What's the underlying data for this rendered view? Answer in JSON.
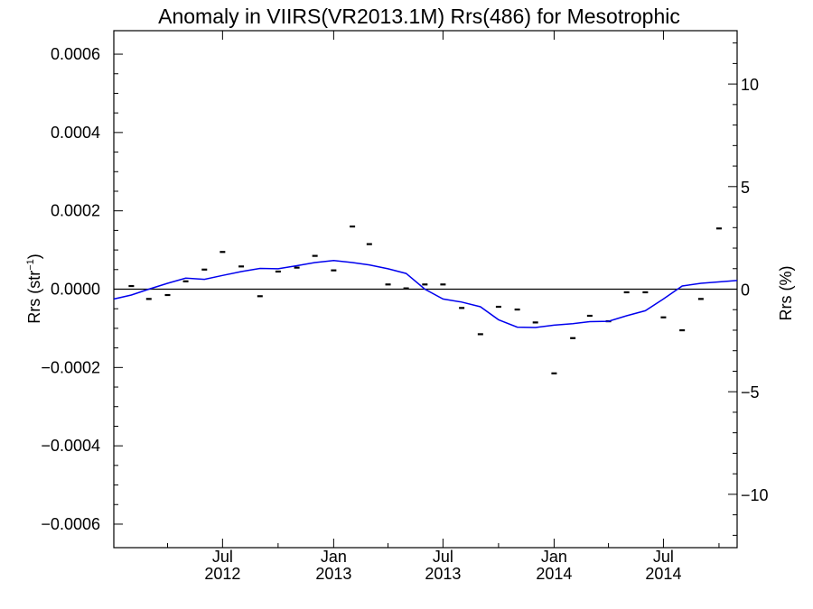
{
  "chart_data": {
    "type": "scatter",
    "title": "Anomaly in VIIRS(VR2013.1M) Rrs(486) for Mesotrophic",
    "ylabel_left": "Rrs (str",
    "ylabel_left_sup": "−1",
    "ylabel_left_end": ")",
    "ylabel_right": "Rrs (%)",
    "ylim": [
      -0.00066,
      0.00066
    ],
    "ylim_right": [
      -12.6,
      12.6
    ],
    "yticks_left": [
      {
        "v": 0.0006,
        "label": "0.0006"
      },
      {
        "v": 0.0004,
        "label": "0.0004"
      },
      {
        "v": 0.0002,
        "label": "0.0002"
      },
      {
        "v": 0.0,
        "label": "0.0000"
      },
      {
        "v": -0.0002,
        "label": "−0.0002"
      },
      {
        "v": -0.0004,
        "label": "−0.0004"
      },
      {
        "v": -0.0006,
        "label": "−0.0006"
      }
    ],
    "yticks_right": [
      {
        "v": 10,
        "label": "10"
      },
      {
        "v": 5,
        "label": "5"
      },
      {
        "v": 0,
        "label": "0"
      },
      {
        "v": -5,
        "label": "−5"
      },
      {
        "v": -10,
        "label": "−10"
      }
    ],
    "xlim": [
      "2012-01-03",
      "2014-10-31"
    ],
    "xticks": [
      {
        "date": "2012-07-01",
        "line1": "Jul",
        "line2": "2012"
      },
      {
        "date": "2013-01-01",
        "line1": "Jan",
        "line2": "2013"
      },
      {
        "date": "2013-07-01",
        "line1": "Jul",
        "line2": "2013"
      },
      {
        "date": "2014-01-01",
        "line1": "Jan",
        "line2": "2014"
      },
      {
        "date": "2014-07-01",
        "line1": "Jul",
        "line2": "2014"
      }
    ],
    "series": [
      {
        "kind": "monthly-points",
        "color": "#000000",
        "x": [
          "2012-01-01",
          "2012-02-01",
          "2012-03-01",
          "2012-04-01",
          "2012-05-01",
          "2012-06-01",
          "2012-07-01",
          "2012-08-01",
          "2012-09-01",
          "2012-10-01",
          "2012-11-01",
          "2012-12-01",
          "2013-01-01",
          "2013-02-01",
          "2013-03-01",
          "2013-04-01",
          "2013-05-01",
          "2013-06-01",
          "2013-07-01",
          "2013-08-01",
          "2013-09-01",
          "2013-10-01",
          "2013-11-01",
          "2013-12-01",
          "2014-01-01",
          "2014-02-01",
          "2014-03-01",
          "2014-04-01",
          "2014-05-01",
          "2014-06-01",
          "2014-07-01",
          "2014-08-01",
          "2014-09-01",
          "2014-10-01"
        ],
        "y": [
          -5e-05,
          8e-06,
          -2.5e-05,
          -1.5e-05,
          2e-05,
          5e-05,
          9.5e-05,
          5.8e-05,
          -1.8e-05,
          4.5e-05,
          5.5e-05,
          8.5e-05,
          4.8e-05,
          0.00016,
          0.000115,
          1.2e-05,
          2e-06,
          1.2e-05,
          1.2e-05,
          -4.8e-05,
          -0.000115,
          -4.5e-05,
          -5.2e-05,
          -8.5e-05,
          -0.000215,
          -0.000125,
          -6.8e-05,
          -8.2e-05,
          -8e-06,
          -8e-06,
          -7.2e-05,
          -0.000105,
          -2.5e-05,
          0.000155
        ]
      },
      {
        "kind": "smoothed-line",
        "color": "#0000ee",
        "x": [
          "2012-01-03",
          "2012-02-01",
          "2012-03-01",
          "2012-04-01",
          "2012-05-01",
          "2012-06-01",
          "2012-07-01",
          "2012-08-01",
          "2012-09-01",
          "2012-10-01",
          "2012-11-01",
          "2012-12-01",
          "2013-01-01",
          "2013-02-01",
          "2013-03-01",
          "2013-04-01",
          "2013-05-01",
          "2013-06-01",
          "2013-07-01",
          "2013-08-01",
          "2013-09-01",
          "2013-10-01",
          "2013-11-01",
          "2013-12-01",
          "2014-01-01",
          "2014-02-01",
          "2014-03-01",
          "2014-04-01",
          "2014-05-01",
          "2014-06-01",
          "2014-07-01",
          "2014-08-01",
          "2014-09-01",
          "2014-10-31"
        ],
        "y": [
          -2.5e-05,
          -1.5e-05,
          0.0,
          1.5e-05,
          2.8e-05,
          2.5e-05,
          3.5e-05,
          4.5e-05,
          5.3e-05,
          5.2e-05,
          6e-05,
          6.8e-05,
          7.3e-05,
          6.8e-05,
          6.2e-05,
          5.2e-05,
          4e-05,
          0.0,
          -2.5e-05,
          -3.3e-05,
          -4.5e-05,
          -7.8e-05,
          -9.7e-05,
          -9.8e-05,
          -9.2e-05,
          -8.8e-05,
          -8.3e-05,
          -8.2e-05,
          -6.8e-05,
          -5.5e-05,
          -2.5e-05,
          8e-06,
          1.5e-05,
          2.2e-05
        ]
      }
    ],
    "zero_line": true,
    "grid": false,
    "legend": "none"
  }
}
